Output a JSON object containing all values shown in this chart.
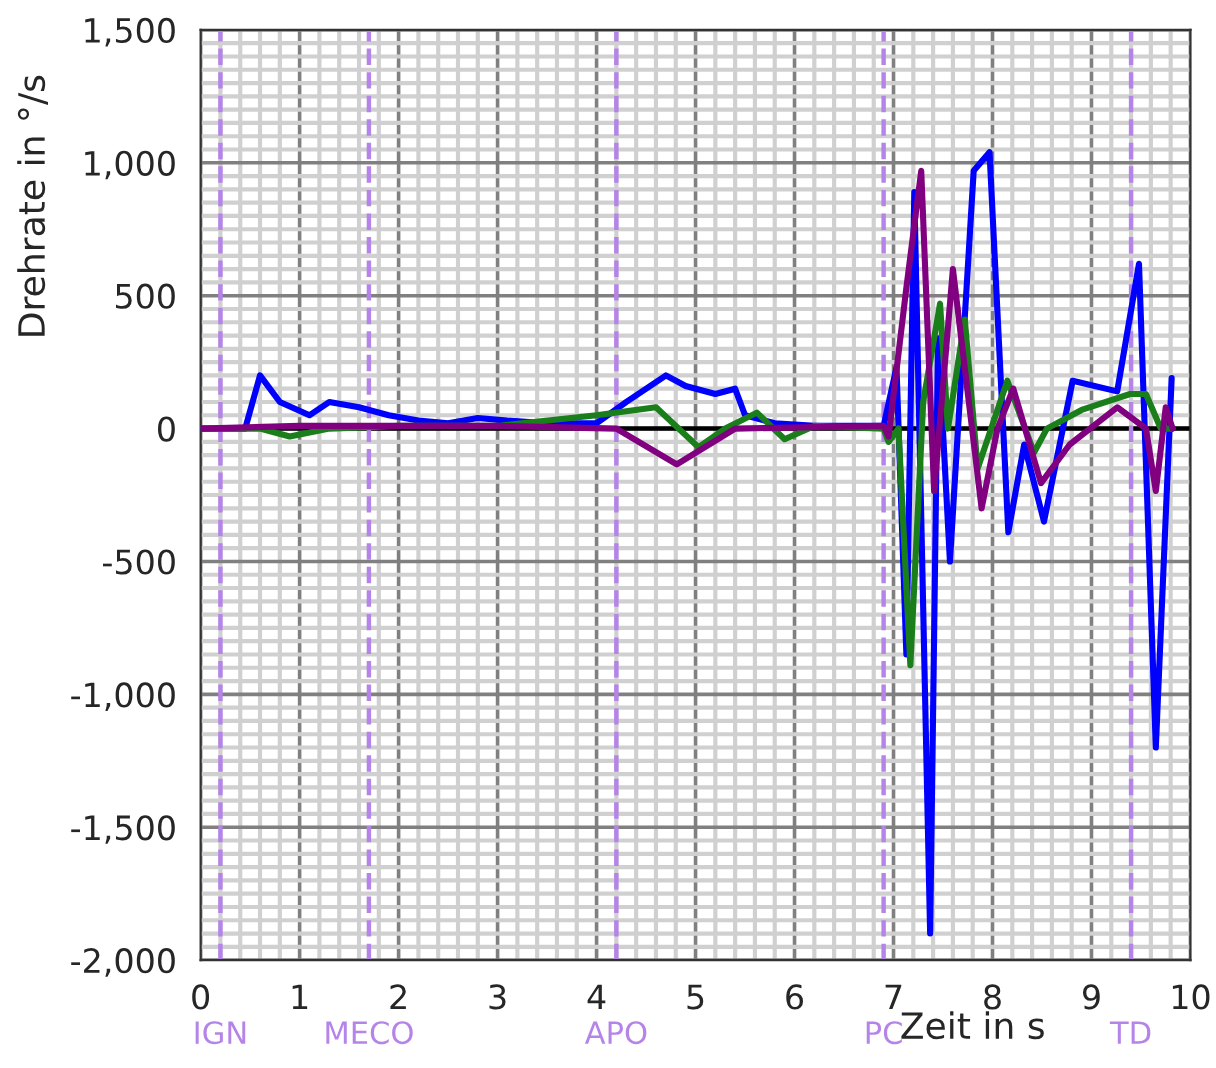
{
  "chart_data": {
    "type": "line",
    "xlabel": "Zeit in s",
    "ylabel": "Drehrate in °/s",
    "xlim": [
      0,
      10
    ],
    "xticks": [
      0,
      1,
      2,
      3,
      4,
      5,
      6,
      7,
      8,
      9,
      10
    ],
    "ylim": [
      -2000,
      1500
    ],
    "yticks": [
      {
        "value": -2000,
        "label": "-2,000"
      },
      {
        "value": -1500,
        "label": "-1,500"
      },
      {
        "value": -1000,
        "label": "-1,000"
      },
      {
        "value": -500,
        "label": "-500"
      },
      {
        "value": 0,
        "label": "0"
      },
      {
        "value": 500,
        "label": "500"
      },
      {
        "value": 1000,
        "label": "1,000"
      },
      {
        "value": 1500,
        "label": "1,500"
      }
    ],
    "grid": true,
    "legend": false,
    "marker": "none",
    "line_style": "solid",
    "series": [
      {
        "color": "#0000ff",
        "x": [
          0,
          0.45,
          0.6,
          0.8,
          1.1,
          1.3,
          1.6,
          1.9,
          2.2,
          2.5,
          2.8,
          3.1,
          3.5,
          4.0,
          4.3,
          4.5,
          4.7,
          4.9,
          5.2,
          5.4,
          5.5,
          5.8,
          6.2,
          6.9,
          7.03,
          7.13,
          7.21,
          7.37,
          7.45,
          7.57,
          7.81,
          7.97,
          8.16,
          8.32,
          8.52,
          8.81,
          9.26,
          9.48,
          9.65,
          9.81
        ],
        "values": [
          0,
          0,
          200,
          100,
          50,
          100,
          80,
          50,
          30,
          20,
          40,
          30,
          20,
          20,
          100,
          150,
          200,
          160,
          130,
          150,
          50,
          20,
          10,
          10,
          230,
          -850,
          890,
          -1900,
          340,
          -500,
          970,
          1040,
          -390,
          -60,
          -350,
          180,
          140,
          620,
          -1200,
          190
        ]
      },
      {
        "color": "#1a7f1a",
        "x": [
          0,
          0.6,
          0.9,
          1.3,
          2.0,
          3.0,
          4.0,
          4.6,
          5.03,
          5.3,
          5.62,
          5.9,
          6.2,
          6.9,
          6.95,
          7.05,
          7.17,
          7.3,
          7.47,
          7.55,
          7.72,
          7.85,
          8.15,
          8.42,
          8.55,
          8.9,
          9.39,
          9.55,
          9.7,
          9.82
        ],
        "values": [
          0,
          0,
          -30,
          0,
          10,
          10,
          50,
          80,
          -70,
          0,
          60,
          -40,
          10,
          0,
          -50,
          0,
          -890,
          100,
          470,
          0,
          410,
          -150,
          180,
          -90,
          0,
          70,
          130,
          130,
          0,
          0
        ]
      },
      {
        "color": "#800080",
        "x": [
          0,
          1.0,
          2.0,
          3.0,
          4.2,
          4.81,
          5.4,
          6.9,
          6.95,
          7.13,
          7.28,
          7.41,
          7.6,
          7.89,
          8.05,
          8.21,
          8.49,
          8.78,
          9.26,
          9.55,
          9.65,
          9.75,
          9.82
        ],
        "values": [
          0,
          10,
          10,
          10,
          0,
          -135,
          0,
          10,
          -30,
          530,
          970,
          -235,
          600,
          -300,
          0,
          150,
          -205,
          -60,
          80,
          0,
          -235,
          80,
          0
        ]
      }
    ],
    "ref_lines": [
      {
        "axis": "y",
        "value": 0,
        "color": "#000000",
        "line_style": "solid"
      },
      {
        "axis": "x",
        "value": 0.2,
        "label": "IGN",
        "color": "#b584e8",
        "line_style": "dashed"
      },
      {
        "axis": "x",
        "value": 1.7,
        "label": "MECO",
        "color": "#b584e8",
        "line_style": "dashed"
      },
      {
        "axis": "x",
        "value": 4.2,
        "label": "APO",
        "color": "#b584e8",
        "line_style": "dashed"
      },
      {
        "axis": "x",
        "value": 6.9,
        "label": "PC",
        "color": "#b584e8",
        "line_style": "dashed"
      },
      {
        "axis": "x",
        "value": 9.4,
        "label": "TD",
        "color": "#b584e8",
        "line_style": "dashed"
      }
    ]
  }
}
